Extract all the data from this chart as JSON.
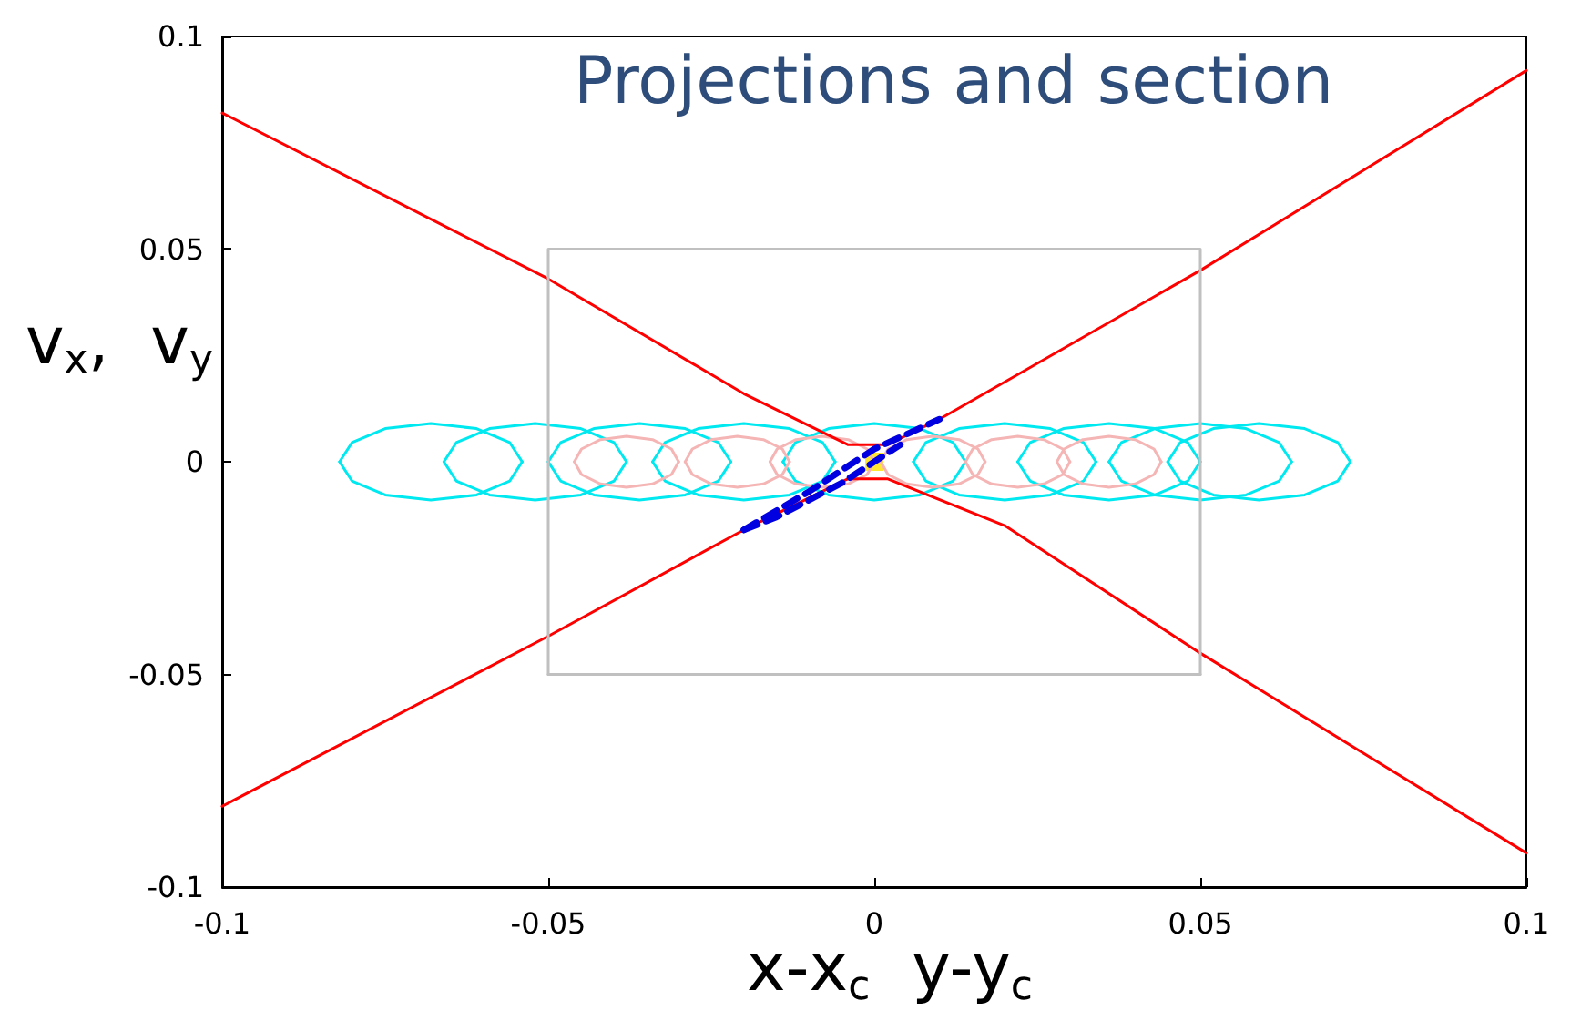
{
  "chart_data": {
    "type": "line",
    "title": "Projections and section",
    "xlabel": "x-x$_{c}$  y-y$_{c}$",
    "ylabel": "v$_{x}$,  v$_{y}$",
    "xlim": [
      -0.1,
      0.1
    ],
    "xticks": [
      -0.1,
      -0.05,
      0,
      0.05,
      0.1
    ],
    "ylim": [
      -0.1,
      0.1
    ],
    "yticks": [
      -0.1,
      -0.05,
      0,
      0.05,
      0.1
    ],
    "grid": false,
    "marker": "none",
    "line_style": "solid",
    "series": [
      {
        "color": "#00e8f0",
        "x": [
          -0.082,
          -0.0801,
          -0.075,
          -0.068,
          -0.061,
          -0.0559,
          -0.054
        ],
        "values": [
          0,
          0.0045,
          0.0078,
          0.009,
          0.0078,
          0.0045,
          0
        ]
      },
      {
        "color": "#00e8f0",
        "x": [
          -0.082,
          -0.0801,
          -0.075,
          -0.068,
          -0.061,
          -0.0559,
          -0.054
        ],
        "values": [
          0,
          -0.0045,
          -0.0078,
          -0.009,
          -0.0078,
          -0.0045,
          0
        ]
      },
      {
        "color": "#00e8f0",
        "x": [
          -0.066,
          -0.0641,
          -0.059,
          -0.052,
          -0.045,
          -0.0399,
          -0.038
        ],
        "values": [
          0,
          0.0045,
          0.0078,
          0.009,
          0.0078,
          0.0045,
          0
        ]
      },
      {
        "color": "#00e8f0",
        "x": [
          -0.066,
          -0.0641,
          -0.059,
          -0.052,
          -0.045,
          -0.0399,
          -0.038
        ],
        "values": [
          0,
          -0.0045,
          -0.0078,
          -0.009,
          -0.0078,
          -0.0045,
          0
        ]
      },
      {
        "color": "#00e8f0",
        "x": [
          -0.05,
          -0.0481,
          -0.043,
          -0.036,
          -0.029,
          -0.0239,
          -0.022
        ],
        "values": [
          0,
          0.0045,
          0.0078,
          0.009,
          0.0078,
          0.0045,
          0
        ]
      },
      {
        "color": "#00e8f0",
        "x": [
          -0.05,
          -0.0481,
          -0.043,
          -0.036,
          -0.029,
          -0.0239,
          -0.022
        ],
        "values": [
          0,
          -0.0045,
          -0.0078,
          -0.009,
          -0.0078,
          -0.0045,
          0
        ]
      },
      {
        "color": "#00e8f0",
        "x": [
          -0.034,
          -0.0321,
          -0.027,
          -0.02,
          -0.013,
          -0.0079,
          -0.006
        ],
        "values": [
          0,
          0.0045,
          0.0078,
          0.009,
          0.0078,
          0.0045,
          0
        ]
      },
      {
        "color": "#00e8f0",
        "x": [
          -0.034,
          -0.0321,
          -0.027,
          -0.02,
          -0.013,
          -0.0079,
          -0.006
        ],
        "values": [
          0,
          -0.0045,
          -0.0078,
          -0.009,
          -0.0078,
          -0.0045,
          0
        ]
      },
      {
        "color": "#00e8f0",
        "x": [
          -0.014,
          -0.0121,
          -0.007,
          0,
          0.007,
          0.0121,
          0.014
        ],
        "values": [
          0,
          0.0045,
          0.0078,
          0.009,
          0.0078,
          0.0045,
          0
        ]
      },
      {
        "color": "#00e8f0",
        "x": [
          -0.014,
          -0.0121,
          -0.007,
          0,
          0.007,
          0.0121,
          0.014
        ],
        "values": [
          0,
          -0.0045,
          -0.0078,
          -0.009,
          -0.0078,
          -0.0045,
          0
        ]
      },
      {
        "color": "#00e8f0",
        "x": [
          0.006,
          0.0079,
          0.013,
          0.02,
          0.027,
          0.0321,
          0.034
        ],
        "values": [
          0,
          0.0045,
          0.0078,
          0.009,
          0.0078,
          0.0045,
          0
        ]
      },
      {
        "color": "#00e8f0",
        "x": [
          0.006,
          0.0079,
          0.013,
          0.02,
          0.027,
          0.0321,
          0.034
        ],
        "values": [
          0,
          -0.0045,
          -0.0078,
          -0.009,
          -0.0078,
          -0.0045,
          0
        ]
      },
      {
        "color": "#00e8f0",
        "x": [
          0.022,
          0.0239,
          0.029,
          0.036,
          0.043,
          0.0481,
          0.05
        ],
        "values": [
          0,
          0.0045,
          0.0078,
          0.009,
          0.0078,
          0.0045,
          0
        ]
      },
      {
        "color": "#00e8f0",
        "x": [
          0.022,
          0.0239,
          0.029,
          0.036,
          0.043,
          0.0481,
          0.05
        ],
        "values": [
          0,
          -0.0045,
          -0.0078,
          -0.009,
          -0.0078,
          -0.0045,
          0
        ]
      },
      {
        "color": "#00e8f0",
        "x": [
          0.036,
          0.0379,
          0.043,
          0.05,
          0.057,
          0.0621,
          0.064
        ],
        "values": [
          0,
          0.0045,
          0.0078,
          0.009,
          0.0078,
          0.0045,
          0
        ]
      },
      {
        "color": "#00e8f0",
        "x": [
          0.036,
          0.0379,
          0.043,
          0.05,
          0.057,
          0.0621,
          0.064
        ],
        "values": [
          0,
          -0.0045,
          -0.0078,
          -0.009,
          -0.0078,
          -0.0045,
          0
        ]
      },
      {
        "color": "#00e8f0",
        "x": [
          0.045,
          0.0469,
          0.052,
          0.059,
          0.066,
          0.0711,
          0.073
        ],
        "values": [
          0,
          0.0045,
          0.0078,
          0.009,
          0.0078,
          0.0045,
          0
        ]
      },
      {
        "color": "#00e8f0",
        "x": [
          0.045,
          0.0469,
          0.052,
          0.059,
          0.066,
          0.0711,
          0.073
        ],
        "values": [
          0,
          -0.0045,
          -0.0078,
          -0.009,
          -0.0078,
          -0.0045,
          0
        ]
      },
      {
        "color": "#f5b5b5",
        "x": [
          -0.046,
          -0.0449,
          -0.042,
          -0.038,
          -0.034,
          -0.0311,
          -0.03
        ],
        "values": [
          0,
          0.003,
          0.0052,
          0.006,
          0.0052,
          0.003,
          0
        ]
      },
      {
        "color": "#f5b5b5",
        "x": [
          -0.046,
          -0.0449,
          -0.042,
          -0.038,
          -0.034,
          -0.0311,
          -0.03
        ],
        "values": [
          0,
          -0.003,
          -0.0052,
          -0.006,
          -0.0052,
          -0.003,
          0
        ]
      },
      {
        "color": "#f5b5b5",
        "x": [
          -0.029,
          -0.0279,
          -0.025,
          -0.021,
          -0.017,
          -0.0141,
          -0.013
        ],
        "values": [
          0,
          0.003,
          0.0052,
          0.006,
          0.0052,
          0.003,
          0
        ]
      },
      {
        "color": "#f5b5b5",
        "x": [
          -0.029,
          -0.0279,
          -0.025,
          -0.021,
          -0.017,
          -0.0141,
          -0.013
        ],
        "values": [
          0,
          -0.003,
          -0.0052,
          -0.006,
          -0.0052,
          -0.003,
          0
        ]
      },
      {
        "color": "#f5b5b5",
        "x": [
          -0.016,
          -0.0149,
          -0.012,
          -0.008,
          -0.004,
          -0.0011,
          0
        ],
        "values": [
          0,
          0.003,
          0.0052,
          0.006,
          0.0052,
          0.003,
          0
        ]
      },
      {
        "color": "#f5b5b5",
        "x": [
          -0.016,
          -0.0149,
          -0.012,
          -0.008,
          -0.004,
          -0.0011,
          0
        ],
        "values": [
          0,
          -0.003,
          -0.0052,
          -0.006,
          -0.0052,
          -0.003,
          0
        ]
      },
      {
        "color": "#f5b5b5",
        "x": [
          0.001,
          0.0021,
          0.005,
          0.009,
          0.013,
          0.0159,
          0.017
        ],
        "values": [
          0,
          0.003,
          0.0052,
          0.006,
          0.0052,
          0.003,
          0
        ]
      },
      {
        "color": "#f5b5b5",
        "x": [
          0.001,
          0.0021,
          0.005,
          0.009,
          0.013,
          0.0159,
          0.017
        ],
        "values": [
          0,
          -0.003,
          -0.0052,
          -0.006,
          -0.0052,
          -0.003,
          0
        ]
      },
      {
        "color": "#f5b5b5",
        "x": [
          0.014,
          0.0151,
          0.018,
          0.022,
          0.026,
          0.0289,
          0.03
        ],
        "values": [
          0,
          0.003,
          0.0052,
          0.006,
          0.0052,
          0.003,
          0
        ]
      },
      {
        "color": "#f5b5b5",
        "x": [
          0.014,
          0.0151,
          0.018,
          0.022,
          0.026,
          0.0289,
          0.03
        ],
        "values": [
          0,
          -0.003,
          -0.0052,
          -0.006,
          -0.0052,
          -0.003,
          0
        ]
      },
      {
        "color": "#f5b5b5",
        "x": [
          0.028,
          0.0291,
          0.032,
          0.036,
          0.04,
          0.0429,
          0.044
        ],
        "values": [
          0,
          0.003,
          0.0052,
          0.006,
          0.0052,
          0.003,
          0
        ]
      },
      {
        "color": "#f5b5b5",
        "x": [
          0.028,
          0.0291,
          0.032,
          0.036,
          0.04,
          0.0429,
          0.044
        ],
        "values": [
          0,
          -0.003,
          -0.0052,
          -0.006,
          -0.0052,
          -0.003,
          0
        ]
      },
      {
        "color": "#ff0000",
        "x": [
          -0.1,
          -0.05,
          -0.02,
          -0.004,
          0.002,
          0.01,
          0.05,
          0.1
        ],
        "values": [
          0.082,
          0.043,
          0.016,
          0.004,
          0.004,
          0.01,
          0.045,
          0.092
        ]
      },
      {
        "color": "#ff0000",
        "x": [
          -0.1,
          -0.05,
          -0.02,
          -0.004,
          0.002,
          0.02,
          0.05,
          0.1
        ],
        "values": [
          -0.081,
          -0.041,
          -0.016,
          -0.004,
          -0.004,
          -0.015,
          -0.045,
          -0.092
        ]
      },
      {
        "color": "#c0c0c0",
        "x": [
          -0.05,
          -0.05,
          0.05,
          0.05
        ],
        "values": [
          -0.05,
          0.05,
          0.05,
          -0.05
        ]
      },
      {
        "color": "#c0c0c0",
        "x": [
          -0.05,
          0.05
        ],
        "values": [
          -0.05,
          -0.05
        ]
      },
      {
        "color": "#0000e0",
        "line_style": "dashed",
        "x": [
          -0.02,
          -0.01,
          0,
          0.01
        ],
        "values": [
          -0.016,
          -0.007,
          0.003,
          0.01
        ]
      },
      {
        "color": "#0000e0",
        "line_style": "dashed",
        "x": [
          -0.02,
          -0.015,
          -0.005,
          0.004
        ],
        "values": [
          -0.016,
          -0.013,
          -0.005,
          0.004
        ]
      },
      {
        "color": "#ffe000",
        "type": "scatter",
        "marker": "square",
        "x": [
          0
        ],
        "values": [
          0
        ]
      }
    ]
  }
}
